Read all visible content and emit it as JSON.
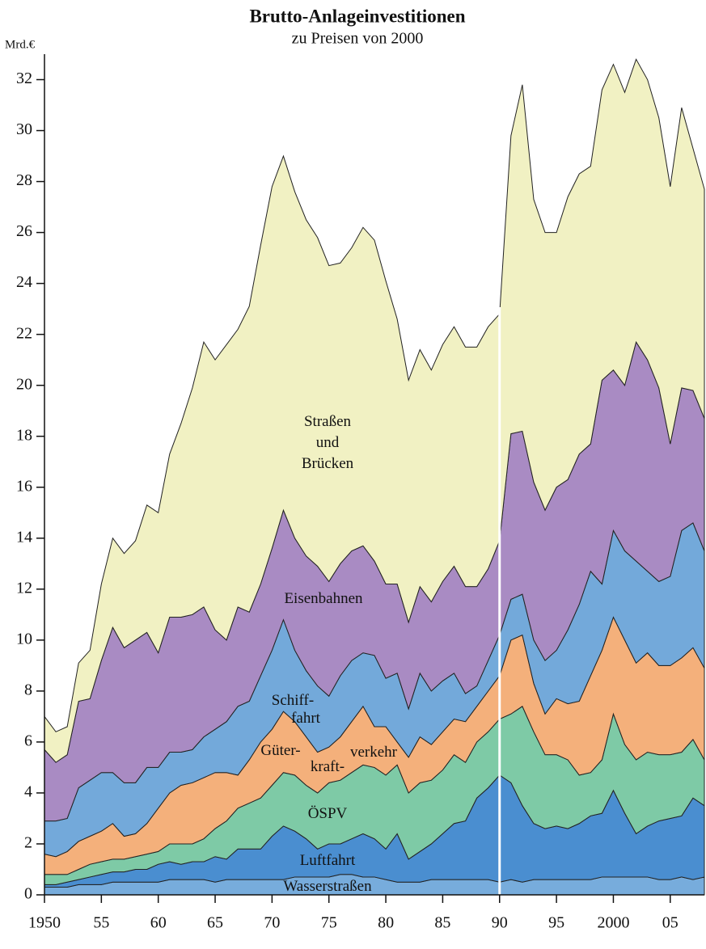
{
  "chart_data": {
    "type": "stacked_area",
    "title": "Brutto-Anlageinvestitionen",
    "subtitle": "zu Preisen von 2000",
    "y_label": "Mrd.€",
    "x": [
      1950,
      1951,
      1952,
      1953,
      1954,
      1955,
      1956,
      1957,
      1958,
      1959,
      1960,
      1961,
      1962,
      1963,
      1964,
      1965,
      1966,
      1967,
      1968,
      1969,
      1970,
      1971,
      1972,
      1973,
      1974,
      1975,
      1976,
      1977,
      1978,
      1979,
      1980,
      1981,
      1982,
      1983,
      1984,
      1985,
      1986,
      1987,
      1988,
      1989,
      1990,
      1991,
      1992,
      1993,
      1994,
      1995,
      1996,
      1997,
      1998,
      1999,
      2000,
      2001,
      2002,
      2003,
      2004,
      2005,
      2006,
      2007,
      2008
    ],
    "xlim": [
      1950,
      2008
    ],
    "xticks": [
      1950,
      {
        "value": 1955,
        "label": "55"
      },
      {
        "value": 1960,
        "label": "60"
      },
      {
        "value": 1965,
        "label": "65"
      },
      {
        "value": 1970,
        "label": "70"
      },
      {
        "value": 1975,
        "label": "75"
      },
      {
        "value": 1980,
        "label": "80"
      },
      {
        "value": 1985,
        "label": "85"
      },
      {
        "value": 1990,
        "label": "90"
      },
      {
        "value": 1995,
        "label": "95"
      },
      2000,
      {
        "value": 2005,
        "label": "05"
      }
    ],
    "ylim": [
      0,
      33
    ],
    "yticks": [
      0,
      2,
      4,
      6,
      8,
      10,
      12,
      14,
      16,
      18,
      20,
      22,
      24,
      26,
      28,
      30,
      32
    ],
    "series": [
      {
        "name": "Wasserstraßen",
        "color": "#77acdc",
        "values": [
          0.3,
          0.3,
          0.3,
          0.4,
          0.4,
          0.4,
          0.5,
          0.5,
          0.5,
          0.5,
          0.5,
          0.6,
          0.6,
          0.6,
          0.6,
          0.5,
          0.6,
          0.6,
          0.6,
          0.6,
          0.6,
          0.6,
          0.7,
          0.7,
          0.7,
          0.7,
          0.8,
          0.8,
          0.7,
          0.7,
          0.6,
          0.5,
          0.5,
          0.5,
          0.6,
          0.6,
          0.6,
          0.6,
          0.6,
          0.6,
          0.5,
          0.6,
          0.5,
          0.6,
          0.6,
          0.6,
          0.6,
          0.6,
          0.6,
          0.7,
          0.7,
          0.7,
          0.7,
          0.7,
          0.6,
          0.6,
          0.7,
          0.6,
          0.7
        ]
      },
      {
        "name": "Luftfahrt",
        "color": "#4a8ed0",
        "values": [
          0.1,
          0.1,
          0.2,
          0.2,
          0.3,
          0.4,
          0.4,
          0.4,
          0.5,
          0.5,
          0.7,
          0.7,
          0.6,
          0.7,
          0.7,
          1.0,
          0.8,
          1.2,
          1.2,
          1.2,
          1.7,
          2.1,
          1.8,
          1.5,
          1.1,
          1.3,
          1.2,
          1.4,
          1.7,
          1.5,
          1.2,
          1.9,
          0.9,
          1.2,
          1.4,
          1.8,
          2.2,
          2.3,
          3.2,
          3.6,
          4.2,
          3.8,
          3.0,
          2.2,
          2.0,
          2.1,
          2.0,
          2.2,
          2.5,
          2.5,
          3.4,
          2.5,
          1.7,
          2.0,
          2.3,
          2.4,
          2.4,
          3.2,
          2.8
        ]
      },
      {
        "name": "ÖSPV",
        "color": "#7ecaa6",
        "values": [
          0.4,
          0.4,
          0.3,
          0.4,
          0.5,
          0.5,
          0.5,
          0.5,
          0.5,
          0.6,
          0.5,
          0.7,
          0.8,
          0.7,
          0.9,
          1.1,
          1.5,
          1.6,
          1.8,
          2.0,
          2.0,
          2.1,
          2.2,
          2.1,
          2.2,
          2.4,
          2.5,
          2.6,
          2.7,
          2.8,
          2.9,
          2.7,
          2.6,
          2.7,
          2.5,
          2.5,
          2.7,
          2.3,
          2.2,
          2.2,
          2.2,
          2.7,
          3.9,
          3.6,
          2.9,
          2.8,
          2.7,
          1.9,
          1.7,
          2.1,
          3.0,
          2.7,
          2.9,
          2.9,
          2.6,
          2.5,
          2.5,
          2.3,
          1.8
        ]
      },
      {
        "name": "Güter- kraft- verkehr",
        "color": "#f4b07b",
        "values": [
          0.8,
          0.7,
          0.9,
          1.1,
          1.1,
          1.2,
          1.4,
          0.9,
          0.9,
          1.2,
          1.7,
          2.0,
          2.3,
          2.4,
          2.4,
          2.2,
          1.9,
          1.3,
          1.7,
          2.2,
          2.2,
          2.4,
          2.1,
          1.9,
          1.6,
          1.4,
          1.7,
          2.0,
          2.3,
          1.6,
          1.9,
          0.9,
          1.4,
          1.8,
          1.4,
          1.5,
          1.4,
          1.6,
          1.4,
          1.6,
          1.7,
          2.9,
          2.8,
          1.9,
          1.6,
          2.2,
          2.2,
          2.9,
          3.8,
          4.3,
          3.8,
          4.1,
          3.8,
          3.9,
          3.5,
          3.5,
          3.7,
          3.6,
          3.6
        ]
      },
      {
        "name": "Schiff- fahrt",
        "color": "#73a9da",
        "values": [
          1.3,
          1.4,
          1.3,
          2.1,
          2.2,
          2.3,
          2.0,
          2.1,
          2.0,
          2.2,
          1.6,
          1.6,
          1.3,
          1.3,
          1.6,
          1.7,
          2.0,
          2.7,
          2.3,
          2.6,
          3.1,
          3.6,
          2.8,
          2.6,
          2.6,
          2.0,
          2.4,
          2.4,
          2.1,
          2.8,
          1.9,
          2.7,
          1.9,
          2.5,
          2.1,
          2.0,
          1.8,
          1.1,
          0.8,
          1.2,
          1.6,
          1.6,
          1.6,
          1.7,
          2.1,
          1.9,
          2.9,
          3.8,
          4.1,
          2.6,
          3.4,
          3.5,
          4.0,
          3.2,
          3.3,
          3.5,
          5.0,
          4.9,
          4.6
        ]
      },
      {
        "name": "Eisenbahnen",
        "color": "#a98bc3",
        "values": [
          2.8,
          2.3,
          2.5,
          3.4,
          3.2,
          4.4,
          5.7,
          5.3,
          5.6,
          5.3,
          4.5,
          5.3,
          5.3,
          5.3,
          5.1,
          3.9,
          3.2,
          3.9,
          3.5,
          3.6,
          4.0,
          4.3,
          4.4,
          4.5,
          4.7,
          4.5,
          4.4,
          4.3,
          4.2,
          3.7,
          3.7,
          3.5,
          3.4,
          3.4,
          3.5,
          3.9,
          4.2,
          4.2,
          3.9,
          3.6,
          3.7,
          6.5,
          6.4,
          6.2,
          5.9,
          6.4,
          5.9,
          5.9,
          5.0,
          8.0,
          6.3,
          6.5,
          8.6,
          8.3,
          7.6,
          5.2,
          5.6,
          5.2,
          5.2
        ]
      },
      {
        "name": "Straßen und Brücken",
        "color": "#f1f1c3",
        "values": [
          1.3,
          1.2,
          1.1,
          1.5,
          1.9,
          3.0,
          3.5,
          3.7,
          3.9,
          5.0,
          5.5,
          6.4,
          7.6,
          8.9,
          10.4,
          10.6,
          11.6,
          10.9,
          12.0,
          13.3,
          14.2,
          13.9,
          13.6,
          13.2,
          12.9,
          12.4,
          11.8,
          11.9,
          12.5,
          12.6,
          11.9,
          10.4,
          9.5,
          9.3,
          9.1,
          9.3,
          9.4,
          9.4,
          9.4,
          9.5,
          8.9,
          11.7,
          13.6,
          11.1,
          10.9,
          10.0,
          11.1,
          11.0,
          10.9,
          11.4,
          12.0,
          11.5,
          11.1,
          11.0,
          10.6,
          10.1,
          11.0,
          9.5,
          9.0
        ]
      }
    ]
  }
}
